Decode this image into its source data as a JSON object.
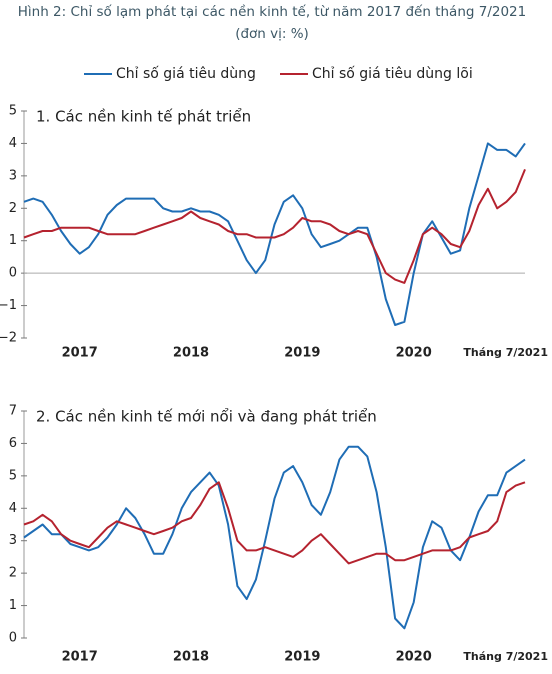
{
  "title": "Hình 2: Chỉ số lạm phát tại các nền kinh tế, từ năm 2017 đến tháng 7/2021",
  "subtitle": "(đơn vị: %)",
  "legend": [
    {
      "name": "Chỉ số giá tiêu dùng",
      "color": "#1f6db5"
    },
    {
      "name": "Chỉ số giá tiêu dùng lõi",
      "color": "#b5232f"
    }
  ],
  "chart_data": [
    {
      "type": "line",
      "title": "1. Các nền kinh tế phát triển",
      "categories": [
        null,
        null,
        null,
        null,
        null,
        null,
        "2017",
        null,
        null,
        null,
        null,
        null,
        null,
        null,
        null,
        null,
        null,
        null,
        "2018",
        null,
        null,
        null,
        null,
        null,
        null,
        null,
        null,
        null,
        null,
        null,
        "2019",
        null,
        null,
        null,
        null,
        null,
        null,
        null,
        null,
        null,
        null,
        null,
        "2020",
        null,
        null,
        null,
        null,
        null,
        null,
        null,
        null,
        null,
        null,
        null,
        "Tháng 7/2021"
      ],
      "series": [
        {
          "color": "#1f6db5",
          "values": [
            2.2,
            2.3,
            2.2,
            1.8,
            1.3,
            0.9,
            0.6,
            0.8,
            1.2,
            1.8,
            2.1,
            2.3,
            2.3,
            2.3,
            2.3,
            2.0,
            1.9,
            1.9,
            2.0,
            1.9,
            1.9,
            1.8,
            1.6,
            1.0,
            0.4,
            0.0,
            0.4,
            1.5,
            2.2,
            2.4,
            2.0,
            1.2,
            0.8,
            0.9,
            1.0,
            1.2,
            1.4,
            1.4,
            0.5,
            -0.8,
            -1.6,
            -1.5,
            0.0,
            1.2,
            1.6,
            1.1,
            0.6,
            0.7,
            2.0,
            3.0,
            4.0,
            3.8,
            3.8,
            3.6,
            4.0
          ]
        },
        {
          "color": "#b5232f",
          "values": [
            1.1,
            1.2,
            1.3,
            1.3,
            1.4,
            1.4,
            1.4,
            1.4,
            1.3,
            1.2,
            1.2,
            1.2,
            1.2,
            1.3,
            1.4,
            1.5,
            1.6,
            1.7,
            1.9,
            1.7,
            1.6,
            1.5,
            1.3,
            1.2,
            1.2,
            1.1,
            1.1,
            1.1,
            1.2,
            1.4,
            1.7,
            1.6,
            1.6,
            1.5,
            1.3,
            1.2,
            1.3,
            1.2,
            0.6,
            0.0,
            -0.2,
            -0.3,
            0.4,
            1.2,
            1.4,
            1.2,
            0.9,
            0.8,
            1.3,
            2.1,
            2.6,
            2.0,
            2.2,
            2.5,
            3.2
          ]
        }
      ],
      "ylim": [
        -2,
        5
      ],
      "yticks": [
        {
          "value": -2,
          "label": "−2"
        },
        {
          "value": -1,
          "label": "−1"
        },
        0,
        1,
        2,
        3,
        4,
        5
      ],
      "zero_line": true
    },
    {
      "type": "line",
      "title": "2. Các nền kinh tế mới nổi và đang phát triển",
      "categories": [
        null,
        null,
        null,
        null,
        null,
        null,
        "2017",
        null,
        null,
        null,
        null,
        null,
        null,
        null,
        null,
        null,
        null,
        null,
        "2018",
        null,
        null,
        null,
        null,
        null,
        null,
        null,
        null,
        null,
        null,
        null,
        "2019",
        null,
        null,
        null,
        null,
        null,
        null,
        null,
        null,
        null,
        null,
        null,
        "2020",
        null,
        null,
        null,
        null,
        null,
        null,
        null,
        null,
        null,
        null,
        null,
        "Tháng 7/2021"
      ],
      "series": [
        {
          "color": "#1f6db5",
          "values": [
            3.1,
            3.3,
            3.5,
            3.2,
            3.2,
            2.9,
            2.8,
            2.7,
            2.8,
            3.1,
            3.5,
            4.0,
            3.7,
            3.2,
            2.6,
            2.6,
            3.2,
            4.0,
            4.5,
            4.8,
            5.1,
            4.7,
            3.5,
            1.6,
            1.2,
            1.8,
            3.0,
            4.3,
            5.1,
            5.3,
            4.8,
            4.1,
            3.8,
            4.5,
            5.5,
            5.9,
            5.9,
            5.6,
            4.5,
            2.8,
            0.6,
            0.3,
            1.1,
            2.8,
            3.6,
            3.4,
            2.7,
            2.4,
            3.1,
            3.9,
            4.4,
            4.4,
            5.1,
            5.3,
            5.5
          ]
        },
        {
          "color": "#b5232f",
          "values": [
            3.5,
            3.6,
            3.8,
            3.6,
            3.2,
            3.0,
            2.9,
            2.8,
            3.1,
            3.4,
            3.6,
            3.5,
            3.4,
            3.3,
            3.2,
            3.3,
            3.4,
            3.6,
            3.7,
            4.1,
            4.6,
            4.8,
            4.0,
            3.0,
            2.7,
            2.7,
            2.8,
            2.7,
            2.6,
            2.5,
            2.7,
            3.0,
            3.2,
            2.9,
            2.6,
            2.3,
            2.4,
            2.5,
            2.6,
            2.6,
            2.4,
            2.4,
            2.5,
            2.6,
            2.7,
            2.7,
            2.7,
            2.8,
            3.1,
            3.2,
            3.3,
            3.6,
            4.5,
            4.7,
            4.8
          ]
        }
      ],
      "ylim": [
        0,
        7
      ],
      "yticks": [
        0,
        1,
        2,
        3,
        4,
        5,
        6,
        7
      ],
      "zero_line": false
    }
  ]
}
